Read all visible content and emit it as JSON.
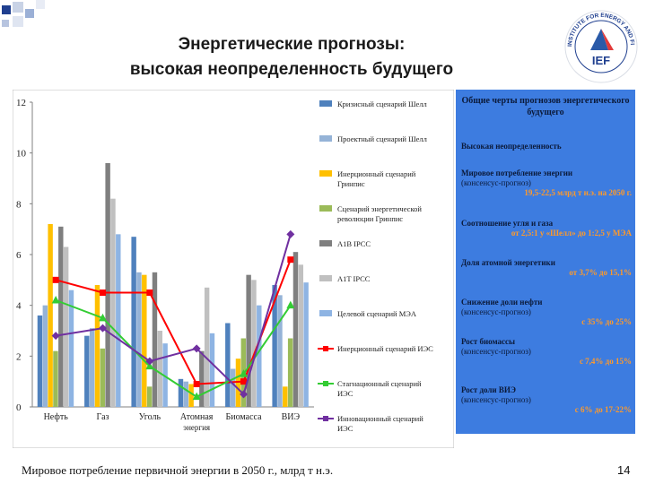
{
  "slide": {
    "title_line1": "Энергетические прогнозы:",
    "title_line2": "высокая неопределенность будущего",
    "logo_text": "IEF",
    "logo_ring_text": "INSTITUTE FOR ENERGY AND FINANCE",
    "caption": "Мировое потребление первичной энергии в 2050 г., млрд т н.э.",
    "page_number": "14"
  },
  "panel": {
    "heading": "Общие черты прогнозов энергетического будущего",
    "items": [
      {
        "head": "Высокая неопределенность",
        "line1": "",
        "line2": ""
      },
      {
        "head": "Мировое потребление энергии",
        "line1": "(консенсус-прогноз)",
        "line2": "19,5-22,5 млрд т н.э. на 2050 г."
      },
      {
        "head": "Соотношение угля и газа",
        "line1": "",
        "line2": "от 2,5:1 у «Шелл» до 1:2,5 у МЭА"
      },
      {
        "head": "Доля атомной энергетики",
        "line1": "",
        "line2": "от 3,7% до 15,1%"
      },
      {
        "head": "Снижение доли нефти",
        "line1": "(консенсус-прогноз)",
        "line2": "с 35% до 25%"
      },
      {
        "head": "Рост биомассы",
        "line1": "(консенсус-прогноз)",
        "line2": "с 7,4% до 15%"
      },
      {
        "head": "Рост доли ВИЭ",
        "line1": "(консенсус-прогноз)",
        "line2": "с 6% до 17-22%"
      }
    ]
  },
  "chart_data": {
    "type": "bar",
    "categories": [
      "Нефть",
      "Газ",
      "Уголь",
      "Атомная энергия",
      "Биомасса",
      "ВИЭ"
    ],
    "ylim": [
      0,
      12
    ],
    "yticks": [
      0,
      2,
      4,
      6,
      8,
      10,
      12
    ],
    "grid": false,
    "legend_position": "right",
    "series": [
      {
        "name": "Кризисный сценарий Шелл",
        "kind": "bar",
        "color": "#4f81bd",
        "values": [
          3.6,
          2.8,
          6.7,
          1.1,
          3.3,
          4.8
        ]
      },
      {
        "name": "Проектный сценарий Шелл",
        "kind": "bar",
        "color": "#95b3d7",
        "values": [
          4.0,
          3.1,
          5.3,
          1.0,
          1.5,
          4.4
        ]
      },
      {
        "name": "Инерционный сценарий Гринпис",
        "kind": "bar",
        "color": "#ffc000",
        "values": [
          7.2,
          4.8,
          5.2,
          0.9,
          1.9,
          0.8
        ]
      },
      {
        "name": "Сценарий энергетической революции Гринпис",
        "kind": "bar",
        "color": "#9bbb59",
        "values": [
          2.2,
          2.3,
          0.8,
          0.0,
          2.7,
          2.7
        ]
      },
      {
        "name": "A1B IPCC",
        "kind": "bar",
        "color": "#7f7f7f",
        "values": [
          7.1,
          9.6,
          5.3,
          2.2,
          5.2,
          6.1
        ]
      },
      {
        "name": "A1T IPCC",
        "kind": "bar",
        "color": "#c0c0c0",
        "values": [
          6.3,
          8.2,
          3.0,
          4.7,
          5.0,
          5.6
        ]
      },
      {
        "name": "Целевой сценарий МЭА",
        "kind": "bar",
        "color": "#8eb4e3",
        "values": [
          4.6,
          6.8,
          2.5,
          2.9,
          4.0,
          4.9
        ]
      },
      {
        "name": "Инерционный сценарий ИЭС",
        "kind": "line",
        "color": "#ff0000",
        "marker": "square",
        "values": [
          5.0,
          4.5,
          4.5,
          0.9,
          1.0,
          5.8
        ]
      },
      {
        "name": "Стагнационный сценарий ИЭС",
        "kind": "line",
        "color": "#33cc33",
        "marker": "triangle",
        "values": [
          4.2,
          3.5,
          1.6,
          0.4,
          1.3,
          4.0
        ]
      },
      {
        "name": "Инновационный сценарий ИЭС",
        "kind": "line",
        "color": "#7030a0",
        "marker": "diamond",
        "values": [
          2.8,
          3.1,
          1.8,
          2.3,
          0.5,
          6.8
        ]
      }
    ]
  }
}
